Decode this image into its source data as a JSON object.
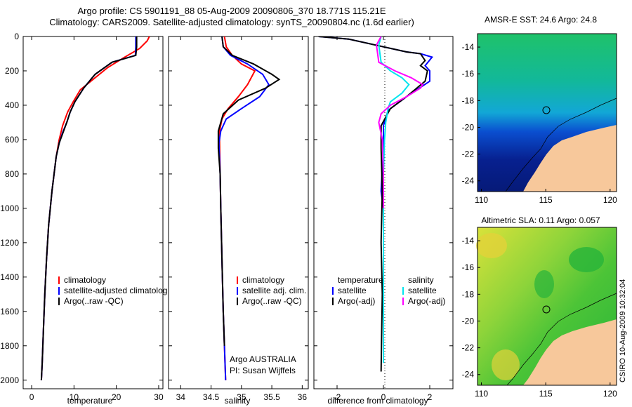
{
  "header": {
    "line1": "Argo profile: CS 5901191_88 05-Aug-2009 20090806_370 18.771S 115.21E",
    "line2": "Climatology: CARS2009. Satellite-adjusted climatology: synTS_20090804.nc (1.6d earlier)"
  },
  "side_label": "CSIRO 10-Aug-2009 10:32:04",
  "colors": {
    "climatology": "#ff0000",
    "satellite": "#0000ff",
    "argo": "#000000",
    "argo_adj_salinity": "#ff00ff",
    "satellite_salinity": "#00e5ee",
    "land": "#f7c89b"
  },
  "chart_data": [
    {
      "type": "line",
      "xlabel": "temperature",
      "ylabel": "",
      "xlim": [
        -2,
        31
      ],
      "ylim": [
        2050,
        0
      ],
      "y_reversed": true,
      "xticks": [
        0,
        10,
        20,
        30
      ],
      "yticks": [
        0,
        200,
        400,
        600,
        800,
        1000,
        1200,
        1400,
        1600,
        1800,
        2000
      ],
      "legend": [
        "climatology",
        "satellite-adjusted climatolog",
        "Argo(..raw -QC)"
      ],
      "series": [
        {
          "name": "climatology",
          "color": "#ff0000",
          "x": [
            27.8,
            27.3,
            25.5,
            22,
            18,
            14.5,
            11.5,
            9.8,
            8.5,
            7.3,
            6.5,
            5.8,
            4.8,
            4.0,
            3.5,
            3.1,
            2.8,
            2.5,
            2.3
          ],
          "y": [
            0,
            25,
            70,
            120,
            180,
            250,
            310,
            380,
            440,
            520,
            600,
            700,
            900,
            1100,
            1300,
            1500,
            1700,
            1900,
            2000
          ]
        },
        {
          "name": "satellite-adjusted climatolog",
          "color": "#0000ff",
          "x": [
            24.6,
            24.6,
            24.5,
            19,
            15,
            12.3,
            10.2,
            9.1,
            8.3,
            7.3,
            6.5,
            5.8,
            4.8,
            4.0,
            3.5,
            3.1,
            2.8,
            2.5,
            2.3
          ],
          "y": [
            0,
            60,
            110,
            150,
            220,
            300,
            380,
            440,
            500,
            560,
            620,
            700,
            900,
            1100,
            1300,
            1500,
            1700,
            1900,
            2000
          ]
        },
        {
          "name": "Argo(..raw -QC)",
          "color": "#000000",
          "x": [
            24.8,
            24.8,
            24.6,
            19,
            15,
            12.3,
            10.2,
            9.1,
            8.3,
            7.4,
            6.5,
            5.8,
            4.8,
            4.0,
            3.5,
            3.1,
            2.8,
            2.5,
            2.3
          ],
          "y": [
            0,
            60,
            110,
            150,
            220,
            300,
            380,
            440,
            500,
            560,
            620,
            700,
            900,
            1100,
            1300,
            1500,
            1700,
            1900,
            2000
          ]
        }
      ],
      "annotations": []
    },
    {
      "type": "line",
      "xlabel": "salinity",
      "ylabel": "",
      "xlim": [
        33.8,
        36.1
      ],
      "ylim": [
        2050,
        0
      ],
      "y_reversed": true,
      "xticks": [
        34,
        34.5,
        35,
        35.5,
        36
      ],
      "yticks": [],
      "legend": [
        "climatology",
        "satellite adj. clim.",
        "Argo(..raw -QC)"
      ],
      "series": [
        {
          "name": "climatology",
          "color": "#ff0000",
          "x": [
            34.72,
            34.75,
            34.85,
            35.0,
            35.22,
            35.1,
            34.95,
            34.78,
            34.68,
            34.64,
            34.64,
            34.65,
            34.66,
            34.68,
            34.7,
            34.72,
            34.74
          ],
          "y": [
            0,
            60,
            110,
            160,
            200,
            280,
            350,
            420,
            480,
            550,
            620,
            800,
            1000,
            1300,
            1600,
            1800,
            2000
          ]
        },
        {
          "name": "satellite adj. clim.",
          "color": "#0000ff",
          "x": [
            34.68,
            34.7,
            34.82,
            35.1,
            35.35,
            35.45,
            35.3,
            35.0,
            34.75,
            34.66,
            34.63,
            34.65,
            34.66,
            34.68,
            34.7,
            34.72,
            34.74
          ],
          "y": [
            0,
            60,
            110,
            160,
            220,
            280,
            350,
            420,
            480,
            550,
            620,
            800,
            1000,
            1300,
            1600,
            1800,
            2000
          ]
        },
        {
          "name": "Argo(..raw -QC)",
          "color": "#000000",
          "x": [
            34.68,
            34.7,
            34.85,
            35.2,
            35.5,
            35.62,
            35.4,
            34.95,
            34.7,
            34.62,
            34.62,
            34.65,
            34.66,
            34.68,
            34.7,
            34.72
          ],
          "y": [
            0,
            60,
            110,
            160,
            220,
            250,
            300,
            370,
            450,
            550,
            650,
            800,
            1000,
            1300,
            1600,
            1800
          ]
        }
      ],
      "annotations": [
        "Argo AUSTRALIA",
        "PI: Susan Wijffels"
      ]
    },
    {
      "type": "line",
      "xlabel": "difference from climatology",
      "ylabel": "",
      "xlim": [
        -3,
        3
      ],
      "ylim": [
        2050,
        0
      ],
      "y_reversed": true,
      "xticks": [
        -2,
        0,
        2
      ],
      "yticks": [],
      "legend_titles": [
        "temperature",
        "salinity"
      ],
      "legend": [
        "satellite",
        "Argo(-adj)",
        "satellite",
        "Argo(-adj)"
      ],
      "series": [
        {
          "name": "satellite",
          "color": "#0000ff",
          "x": [
            -2.8,
            -1.5,
            0,
            1.0,
            1.6,
            2.1,
            1.8,
            2.0,
            2.0,
            1.0,
            0.2,
            0,
            0,
            -0.1,
            0
          ],
          "y": [
            0,
            15,
            60,
            90,
            100,
            120,
            170,
            200,
            260,
            350,
            430,
            520,
            650,
            900,
            1000
          ]
        },
        {
          "name": "Argo(-adj)",
          "color": "#000000",
          "x": [
            -2.8,
            -1.5,
            0,
            1.0,
            1.6,
            1.8,
            1.6,
            1.9,
            1.8,
            1.0,
            0.3,
            -0.1,
            -0.1,
            -0.05,
            -0.1,
            -0.05,
            -0.08,
            -0.1
          ],
          "y": [
            0,
            15,
            60,
            90,
            100,
            140,
            170,
            200,
            260,
            350,
            420,
            520,
            650,
            900,
            1200,
            1500,
            1750,
            1950
          ]
        },
        {
          "name": "satellite",
          "color": "#00e5ee",
          "x": [
            -0.1,
            -0.2,
            -0.1,
            0.3,
            0.8,
            1.1,
            0.8,
            0.3,
            0.2,
            0.1,
            0.05,
            0,
            0,
            0,
            0,
            0
          ],
          "y": [
            0,
            50,
            150,
            200,
            240,
            280,
            330,
            380,
            420,
            500,
            600,
            800,
            1000,
            1300,
            1600,
            1900
          ]
        },
        {
          "name": "Argo(-adj)",
          "color": "#ff00ff",
          "x": [
            -0.1,
            -0.3,
            -0.2,
            0.5,
            1.2,
            1.7,
            1.6,
            1.0,
            0.3,
            -0.1,
            -0.2,
            -0.05,
            0,
            0
          ],
          "y": [
            0,
            50,
            150,
            200,
            240,
            280,
            300,
            350,
            400,
            450,
            500,
            600,
            800,
            1000
          ]
        }
      ],
      "annotations": []
    },
    {
      "type": "heatmap",
      "title": "AMSR-E SST: 24.6 Argo: 24.8",
      "xlim": [
        109.7,
        120.5
      ],
      "ylim": [
        -24.8,
        -13
      ],
      "xticks": [
        110,
        115,
        120
      ],
      "yticks": [
        -14,
        -16,
        -18,
        -20,
        -22,
        -24
      ],
      "marker": {
        "lon": 115.21,
        "lat": -18.771
      }
    },
    {
      "type": "heatmap",
      "title": "Altimetric SLA: 0.11 Argo: 0.057",
      "xlim": [
        109.7,
        120.5
      ],
      "ylim": [
        -24.8,
        -13
      ],
      "xticks": [
        110,
        115,
        120
      ],
      "yticks": [
        -14,
        -16,
        -18,
        -20,
        -22,
        -24
      ],
      "marker": {
        "lon": 115.21,
        "lat": -18.771
      }
    }
  ]
}
